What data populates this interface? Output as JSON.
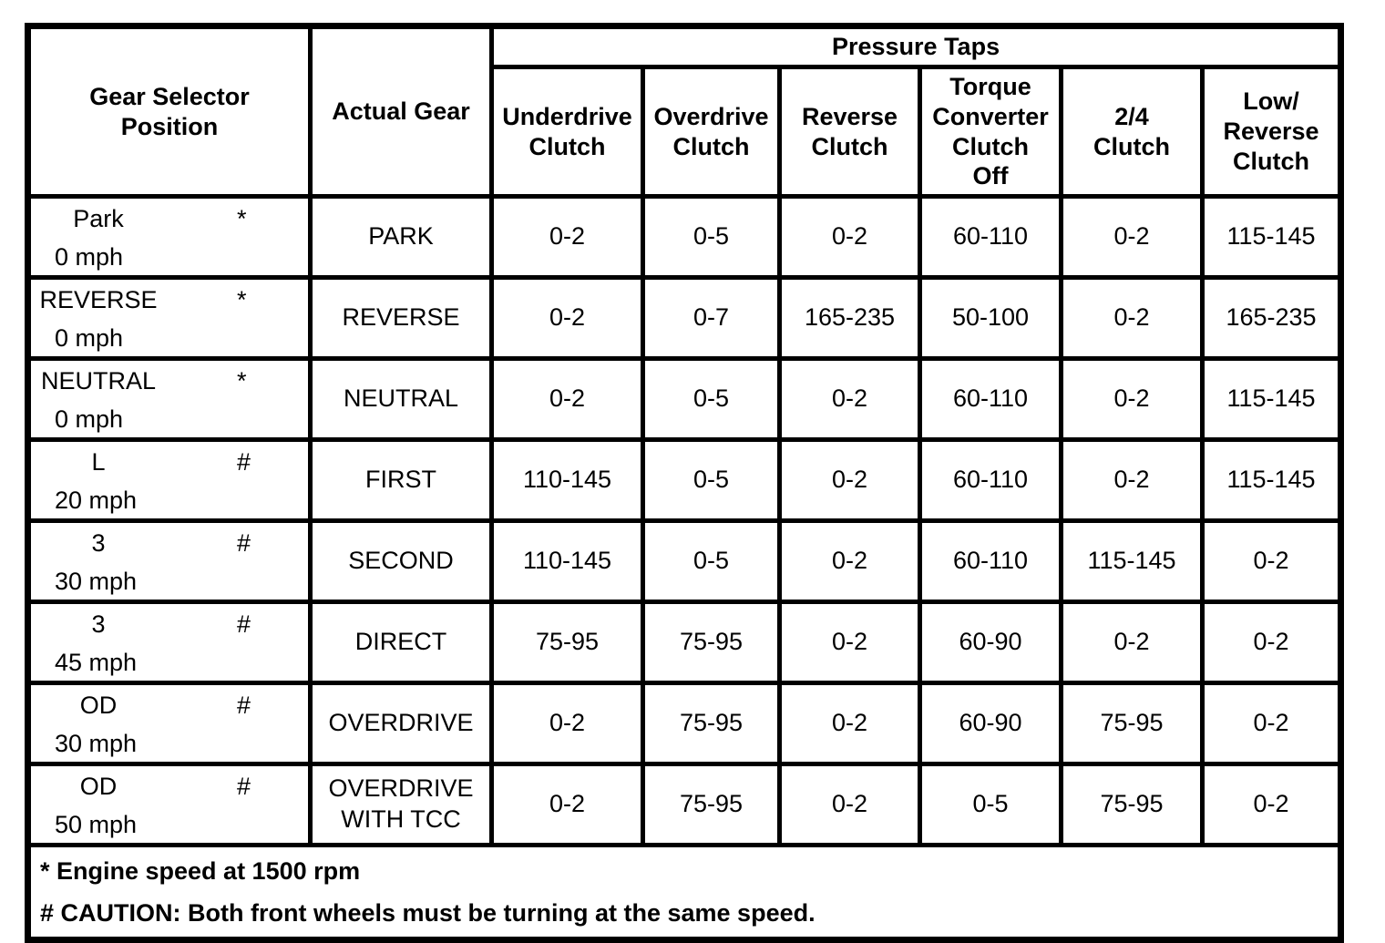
{
  "table": {
    "header": {
      "gear_selector_position": "Gear Selector\nPosition",
      "actual_gear": "Actual Gear",
      "pressure_taps": "Pressure Taps",
      "clutch_columns": [
        "Underdrive\nClutch",
        "Overdrive\nClutch",
        "Reverse\nClutch",
        "Torque\nConverter\nClutch\nOff",
        "2/4\nClutch",
        "Low/\nReverse\nClutch"
      ]
    },
    "rows": [
      {
        "position": "Park",
        "marker": "*",
        "speed": "0 mph",
        "gear": "PARK",
        "values": [
          "0-2",
          "0-5",
          "0-2",
          "60-110",
          "0-2",
          "115-145"
        ]
      },
      {
        "position": "REVERSE",
        "marker": "*",
        "speed": "0 mph",
        "gear": "REVERSE",
        "values": [
          "0-2",
          "0-7",
          "165-235",
          "50-100",
          "0-2",
          "165-235"
        ]
      },
      {
        "position": "NEUTRAL",
        "marker": "*",
        "speed": "0 mph",
        "gear": "NEUTRAL",
        "values": [
          "0-2",
          "0-5",
          "0-2",
          "60-110",
          "0-2",
          "115-145"
        ]
      },
      {
        "position": "L",
        "marker": "#",
        "speed": "20 mph",
        "gear": "FIRST",
        "values": [
          "110-145",
          "0-5",
          "0-2",
          "60-110",
          "0-2",
          "115-145"
        ]
      },
      {
        "position": "3",
        "marker": "#",
        "speed": "30 mph",
        "gear": "SECOND",
        "values": [
          "110-145",
          "0-5",
          "0-2",
          "60-110",
          "115-145",
          "0-2"
        ]
      },
      {
        "position": "3",
        "marker": "#",
        "speed": "45 mph",
        "gear": "DIRECT",
        "values": [
          "75-95",
          "75-95",
          "0-2",
          "60-90",
          "0-2",
          "0-2"
        ]
      },
      {
        "position": "OD",
        "marker": "#",
        "speed": "30 mph",
        "gear": "OVERDRIVE",
        "values": [
          "0-2",
          "75-95",
          "0-2",
          "60-90",
          "75-95",
          "0-2"
        ]
      },
      {
        "position": "OD",
        "marker": "#",
        "speed": "50 mph",
        "gear": "OVERDRIVE\nWITH TCC",
        "values": [
          "0-2",
          "75-95",
          "0-2",
          "0-5",
          "75-95",
          "0-2"
        ]
      }
    ],
    "notes": [
      "* Engine speed at 1500 rpm",
      "# CAUTION: Both front wheels must be turning at the same speed."
    ]
  }
}
